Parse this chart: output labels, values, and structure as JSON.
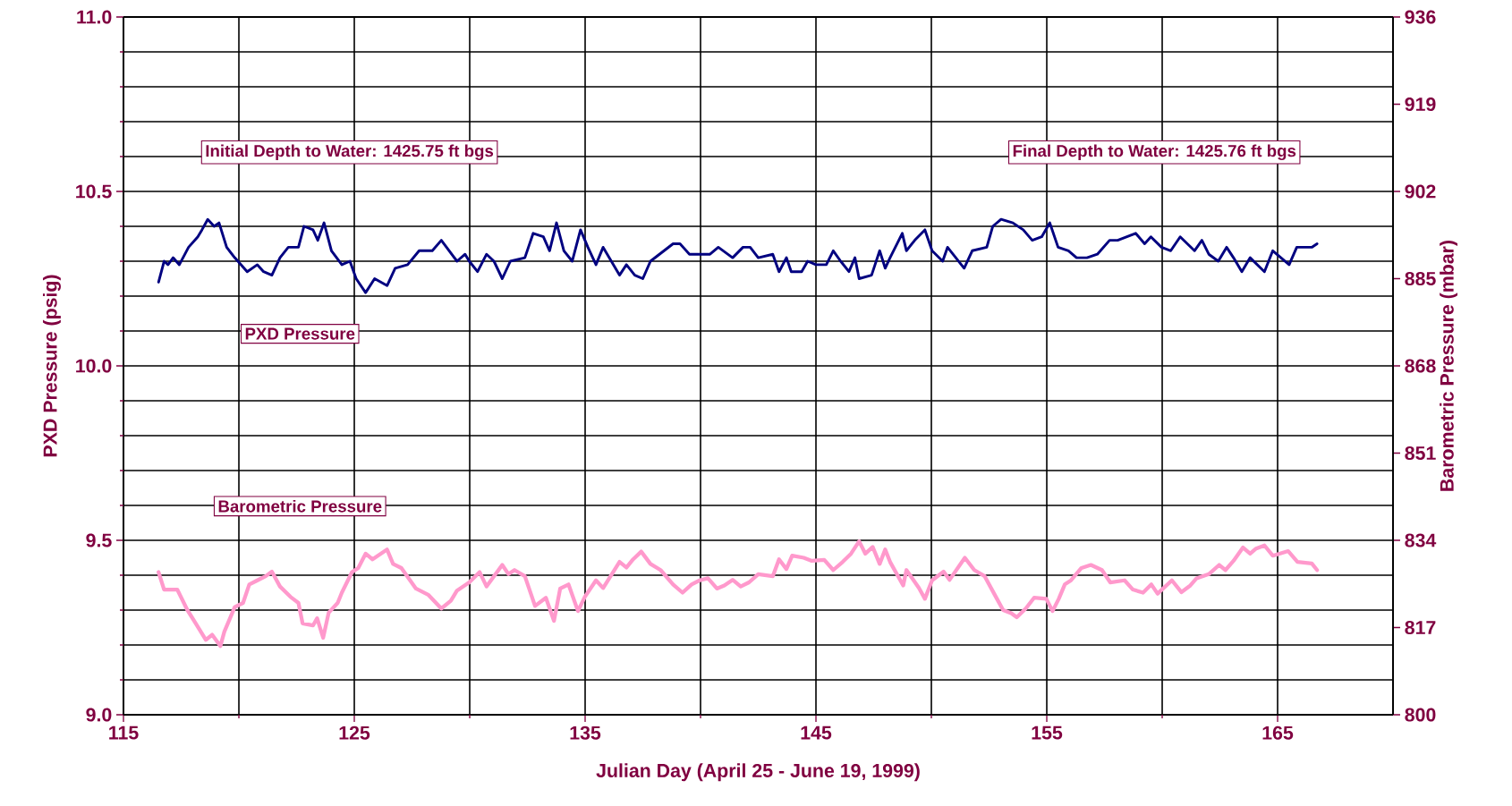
{
  "chart_data": {
    "type": "line",
    "xlabel": "Julian Day (April 25 - June 19, 1999)",
    "ylabel": "PXD Pressure (psig)",
    "y2label": "Barometric Pressure (mbar)",
    "annotations": [
      "Initial Depth to Water: 1425.75 ft bgs",
      "Final Depth to Water: 1425.76 ft bgs"
    ],
    "xlim": [
      115,
      170
    ],
    "xticks": [
      115,
      {
        "value": 120,
        "label": null
      },
      125,
      {
        "value": 130,
        "label": null
      },
      135,
      {
        "value": 140,
        "label": null
      },
      145,
      {
        "value": 150,
        "label": null
      },
      155,
      {
        "value": 160,
        "label": null
      },
      165
    ],
    "ylim": [
      9,
      11
    ],
    "yticks": [
      {
        "value": 9,
        "label": "9.0"
      },
      {
        "value": 9.1,
        "label": null
      },
      {
        "value": 9.2,
        "label": null
      },
      {
        "value": 9.3,
        "label": null
      },
      {
        "value": 9.4,
        "label": null
      },
      9.5,
      {
        "value": 9.6,
        "label": null
      },
      {
        "value": 9.7,
        "label": null
      },
      {
        "value": 9.8,
        "label": null
      },
      {
        "value": 9.9,
        "label": null
      },
      {
        "value": 10,
        "label": "10.0"
      },
      {
        "value": 10.1,
        "label": null
      },
      {
        "value": 10.2,
        "label": null
      },
      {
        "value": 10.3,
        "label": null
      },
      {
        "value": 10.4,
        "label": null
      },
      10.5,
      {
        "value": 10.6,
        "label": null
      },
      {
        "value": 10.7,
        "label": null
      },
      {
        "value": 10.8,
        "label": null
      },
      {
        "value": 10.9,
        "label": null
      },
      {
        "value": 11,
        "label": "11.0"
      }
    ],
    "y2lim": [
      800,
      936
    ],
    "y2ticks": [
      800,
      817,
      834,
      851,
      868,
      885,
      902,
      919,
      936
    ],
    "grid": true,
    "marker": "none",
    "line_style": "solid",
    "series": [
      {
        "name": "PXD Pressure",
        "color": "#000080",
        "x": [
          116.52,
          116.76,
          116.93,
          117.15,
          117.42,
          117.82,
          118.22,
          118.4,
          118.65,
          118.93,
          119.14,
          119.47,
          119.82,
          120.36,
          120.8,
          121.07,
          121.43,
          121.78,
          122.14,
          122.58,
          122.82,
          123.21,
          123.42,
          123.69,
          124.01,
          124.46,
          124.81,
          125.08,
          125.49,
          125.88,
          126.42,
          126.77,
          127.31,
          127.81,
          128.38,
          128.77,
          129.45,
          129.8,
          129.98,
          130.34,
          130.73,
          131.05,
          131.41,
          131.76,
          132.39,
          132.75,
          133.19,
          133.46,
          133.76,
          134.08,
          134.44,
          134.8,
          135.12,
          135.47,
          135.78,
          136.49,
          136.79,
          137.15,
          137.5,
          137.83,
          138.81,
          139.11,
          139.52,
          139.96,
          140.41,
          140.77,
          141.39,
          141.84,
          142.15,
          142.5,
          143.13,
          143.4,
          143.72,
          143.93,
          144.38,
          144.64,
          145.0,
          145.45,
          145.75,
          146.07,
          146.43,
          146.69,
          146.87,
          147.41,
          147.76,
          148.0,
          148.21,
          148.74,
          148.92,
          149.28,
          149.72,
          150.03,
          150.49,
          150.7,
          151.42,
          151.77,
          152.4,
          152.66,
          153.02,
          153.53,
          153.98,
          154.37,
          154.78,
          155.13,
          155.49,
          155.94,
          156.29,
          156.74,
          157.19,
          157.72,
          158.07,
          158.85,
          159.24,
          159.51,
          159.97,
          160.37,
          160.78,
          161.4,
          161.72,
          162.02,
          162.43,
          162.79,
          163.09,
          163.45,
          163.81,
          164.43,
          164.79,
          165.5,
          165.83,
          166.48,
          166.71
        ],
        "values": [
          10.24,
          10.3,
          10.29,
          10.31,
          10.29,
          10.34,
          10.37,
          10.39,
          10.42,
          10.4,
          10.41,
          10.34,
          10.31,
          10.27,
          10.29,
          10.27,
          10.26,
          10.31,
          10.34,
          10.34,
          10.4,
          10.39,
          10.36,
          10.41,
          10.33,
          10.29,
          10.3,
          10.25,
          10.21,
          10.25,
          10.23,
          10.28,
          10.29,
          10.33,
          10.33,
          10.36,
          10.3,
          10.32,
          10.3,
          10.27,
          10.32,
          10.3,
          10.25,
          10.3,
          10.31,
          10.38,
          10.37,
          10.33,
          10.41,
          10.33,
          10.3,
          10.39,
          10.34,
          10.29,
          10.34,
          10.26,
          10.29,
          10.26,
          10.25,
          10.3,
          10.35,
          10.35,
          10.32,
          10.32,
          10.32,
          10.34,
          10.31,
          10.34,
          10.34,
          10.31,
          10.32,
          10.27,
          10.31,
          10.27,
          10.27,
          10.3,
          10.29,
          10.29,
          10.33,
          10.3,
          10.27,
          10.31,
          10.25,
          10.26,
          10.33,
          10.28,
          10.31,
          10.38,
          10.33,
          10.36,
          10.39,
          10.33,
          10.3,
          10.34,
          10.28,
          10.33,
          10.34,
          10.4,
          10.42,
          10.41,
          10.39,
          10.36,
          10.37,
          10.41,
          10.34,
          10.33,
          10.31,
          10.31,
          10.32,
          10.36,
          10.36,
          10.38,
          10.35,
          10.37,
          10.34,
          10.33,
          10.37,
          10.33,
          10.36,
          10.32,
          10.3,
          10.34,
          10.31,
          10.27,
          10.31,
          10.27,
          10.33,
          10.29,
          10.34,
          10.34,
          10.35
        ]
      },
      {
        "name": "Barometric Pressure",
        "color": "#ff99cc",
        "axis": "y2",
        "x": [
          116.52,
          116.76,
          117.33,
          117.77,
          118.13,
          118.57,
          118.84,
          119.2,
          119.37,
          119.82,
          120.18,
          120.45,
          120.8,
          121.16,
          121.43,
          121.78,
          122.23,
          122.58,
          122.76,
          123.21,
          123.39,
          123.65,
          123.89,
          124.28,
          124.46,
          124.9,
          125.17,
          125.49,
          125.79,
          126.42,
          126.68,
          127.04,
          127.67,
          128.2,
          128.77,
          129.18,
          129.45,
          129.98,
          130.43,
          130.73,
          131.41,
          131.68,
          131.94,
          132.39,
          132.83,
          133.3,
          133.65,
          133.92,
          134.28,
          134.69,
          134.99,
          135.47,
          135.78,
          136.49,
          136.79,
          137.08,
          137.43,
          137.83,
          138.27,
          138.81,
          139.22,
          139.61,
          139.96,
          140.32,
          140.71,
          141.03,
          141.39,
          141.74,
          142.1,
          142.5,
          143.13,
          143.4,
          143.72,
          143.97,
          144.47,
          144.82,
          145.36,
          145.75,
          146.16,
          146.52,
          146.87,
          147.14,
          147.46,
          147.76,
          148.0,
          148.21,
          148.78,
          148.92,
          149.46,
          149.72,
          150.03,
          150.53,
          150.79,
          151.45,
          151.86,
          152.31,
          152.84,
          153.11,
          153.46,
          153.7,
          154.09,
          154.45,
          154.98,
          155.25,
          155.52,
          155.78,
          156.05,
          156.5,
          156.91,
          157.39,
          157.75,
          158.37,
          158.73,
          159.17,
          159.53,
          159.8,
          160.42,
          160.83,
          161.22,
          161.49,
          162.02,
          162.47,
          162.74,
          163.09,
          163.5,
          163.81,
          164.07,
          164.43,
          164.79,
          165.46,
          165.86,
          166.48,
          166.71
        ],
        "values": [
          827.8,
          824.4,
          824.4,
          820.4,
          817.8,
          814.6,
          815.6,
          813.4,
          816.2,
          821.0,
          821.8,
          825.4,
          826.2,
          827.0,
          827.9,
          825.0,
          823.0,
          821.8,
          817.8,
          817.4,
          818.8,
          815.0,
          819.9,
          821.8,
          823.8,
          827.8,
          828.6,
          831.4,
          830.3,
          832.2,
          829.4,
          828.6,
          824.6,
          823.4,
          820.7,
          822.2,
          824.2,
          825.8,
          827.8,
          825.0,
          829.2,
          827.4,
          828.2,
          827.0,
          821.2,
          822.8,
          818.3,
          824.6,
          825.4,
          820.2,
          823.0,
          826.2,
          824.7,
          829.8,
          828.7,
          830.3,
          831.8,
          829.4,
          828.2,
          825.4,
          823.8,
          825.4,
          826.2,
          826.6,
          824.6,
          825.2,
          826.3,
          825.0,
          825.8,
          827.4,
          827.0,
          830.3,
          828.4,
          831.0,
          830.6,
          830.0,
          830.2,
          828.2,
          829.8,
          831.4,
          833.8,
          831.4,
          832.7,
          829.4,
          832.2,
          829.8,
          825.2,
          828.2,
          824.7,
          822.6,
          826.2,
          827.9,
          826.3,
          830.6,
          828.2,
          827.0,
          822.6,
          820.4,
          819.8,
          819.0,
          820.7,
          822.8,
          822.6,
          820.2,
          822.6,
          825.4,
          826.2,
          828.6,
          829.2,
          828.2,
          825.8,
          826.2,
          824.4,
          823.8,
          825.4,
          823.6,
          826.2,
          823.9,
          825.2,
          826.6,
          827.4,
          829.2,
          828.2,
          830.0,
          832.6,
          831.4,
          832.4,
          833.0,
          831.0,
          831.9,
          829.8,
          829.5,
          828.2
        ]
      }
    ]
  }
}
